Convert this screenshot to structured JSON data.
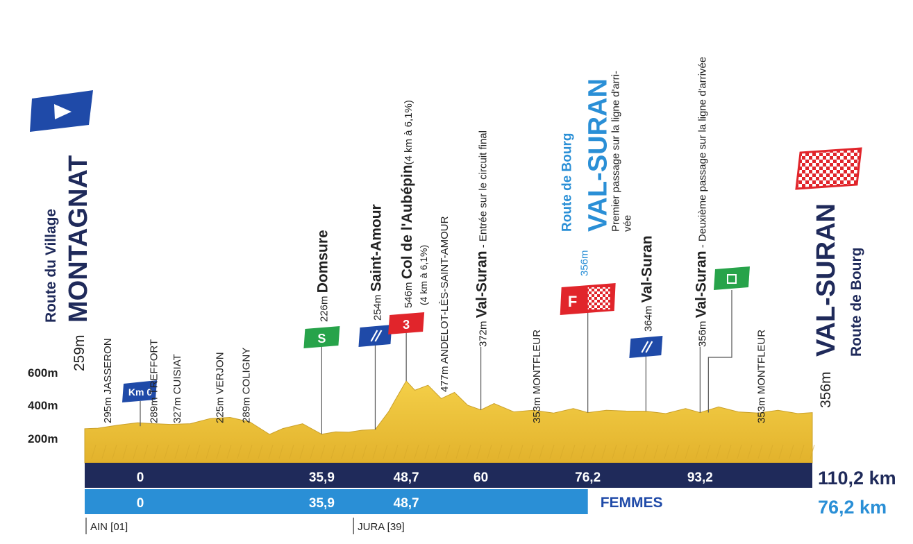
{
  "chart_data": {
    "type": "area",
    "title": "",
    "xlabel": "",
    "ylabel": "",
    "xlim": [
      0,
      110.2
    ],
    "ylim": [
      0,
      600
    ],
    "y_ticks": [
      "600m",
      "400m",
      "200m"
    ],
    "y_tick_values": [
      600,
      400,
      200
    ],
    "profile": {
      "x": [
        0,
        2,
        5,
        8,
        10,
        13,
        16,
        19,
        22,
        25,
        28,
        30,
        33,
        35.9,
        38,
        40,
        42,
        44,
        46,
        47,
        48.7,
        50,
        52,
        54,
        56,
        58,
        60,
        62,
        65,
        68,
        71,
        74,
        76.2,
        79,
        82,
        85,
        88,
        91,
        93.2,
        96,
        99,
        102,
        105,
        108,
        110.2
      ],
      "y": [
        259,
        262,
        280,
        295,
        290,
        285,
        289,
        320,
        327,
        300,
        225,
        260,
        289,
        226,
        240,
        238,
        250,
        254,
        360,
        430,
        546,
        490,
        520,
        440,
        477,
        400,
        372,
        410,
        360,
        370,
        353,
        380,
        356,
        370,
        365,
        364,
        350,
        380,
        356,
        390,
        360,
        353,
        370,
        350,
        356
      ]
    },
    "start": {
      "label": "MONTAGNAT",
      "sublabel": "Route du Village",
      "altitude": "259m"
    },
    "finish": {
      "label": "VAL-SURAN",
      "sublabel": "Route de Bourg",
      "altitude": "356m"
    },
    "km0_label": "Km 0",
    "places": [
      {
        "km": 4,
        "alt": "295m",
        "name": "JASSERON"
      },
      {
        "km": 11,
        "alt": "289m",
        "name": "TREFFORT"
      },
      {
        "km": 14.5,
        "alt": "327m",
        "name": "CUISIAT"
      },
      {
        "km": 21,
        "alt": "225m",
        "name": "VERJON"
      },
      {
        "km": 25,
        "alt": "289m",
        "name": "COLIGNY"
      },
      {
        "km": 55,
        "alt": "477m",
        "name": "ANDELOT-LÈS-SAINT-AMOUR"
      },
      {
        "km": 69,
        "alt": "353m",
        "name": "MONTFLEUR"
      },
      {
        "km": 103,
        "alt": "353m",
        "name": "MONTFLEUR"
      }
    ],
    "points": [
      {
        "km": 35.9,
        "alt": "226m",
        "name": "Domsure",
        "note": "",
        "marker": "S"
      },
      {
        "km": 44,
        "alt": "254m",
        "name": "Saint-Amour",
        "note": "",
        "marker": "feed"
      },
      {
        "km": 48.7,
        "alt": "546m",
        "name": "Col de l'Aubépin",
        "note": "(4 km à 6,1%)",
        "marker": "3"
      },
      {
        "km": 60,
        "alt": "372m",
        "name": "Val-Suran",
        "note": " - Entrée sur le circuit final",
        "marker": ""
      },
      {
        "km": 85,
        "alt": "364m",
        "name": "Val-Suran",
        "note": "",
        "marker": "feed"
      },
      {
        "km": 93.2,
        "alt": "356m",
        "name": "Val-Suran",
        "note": " - Deuxième passage sur la ligne d'arrivée",
        "marker": ""
      }
    ],
    "women_finish": {
      "km": 76.2,
      "alt": "356m",
      "line1": "Route de Bourg",
      "line2": "VAL-SURAN",
      "line3": "Premier passage sur la ligne d'arri-",
      "line4": "vée",
      "marker": "F"
    },
    "km_bar_men": {
      "marks": [
        "0",
        "35,9",
        "48,7",
        "60",
        "76,2",
        "93,2"
      ],
      "mark_km": [
        0,
        35.9,
        48.7,
        60,
        76.2,
        93.2
      ],
      "total": "110,2 km"
    },
    "km_bar_women": {
      "marks": [
        "0",
        "35,9",
        "48,7"
      ],
      "mark_km": [
        0,
        35.9,
        48.7
      ],
      "label": "FEMMES",
      "total": "76,2 km"
    },
    "departments": [
      {
        "km": 0,
        "label": "AIN [01]"
      },
      {
        "km": 40.5,
        "label": "JURA [39]"
      }
    ]
  },
  "colors": {
    "navy": "#1f2a5a",
    "blue_bar": "#2a8fd6",
    "gold": "#f0c53a",
    "gold_dark": "#caa02a",
    "green": "#27a34a",
    "red": "#e1252b",
    "signal_blue": "#1f4aa8",
    "ink": "#222222"
  }
}
